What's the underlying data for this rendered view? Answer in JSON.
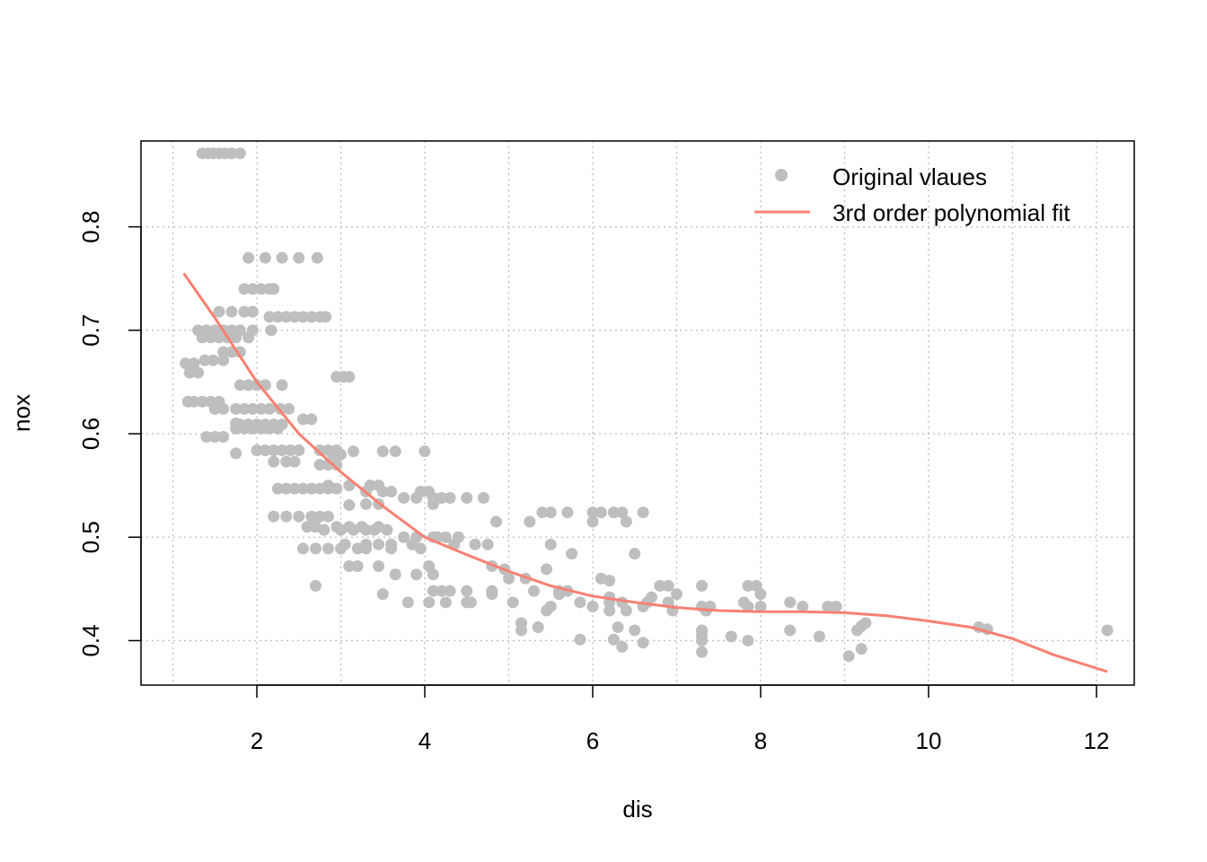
{
  "chart_data": {
    "type": "scatter",
    "title": "",
    "xlabel": "dis",
    "ylabel": "nox",
    "xlim": [
      0.62,
      12.45
    ],
    "ylim": [
      0.357,
      0.883
    ],
    "grid": true,
    "x_ticks": [
      2,
      4,
      6,
      8,
      10,
      12
    ],
    "y_ticks": [
      0.4,
      0.5,
      0.6,
      0.7,
      0.8
    ],
    "x_tick_labels": [
      "2",
      "4",
      "6",
      "8",
      "10",
      "12"
    ],
    "y_tick_labels": [
      "0.4",
      "0.5",
      "0.6",
      "0.7",
      "0.8"
    ],
    "colors": {
      "points": "#BEBEBE",
      "fit": "#FA8072",
      "grid": "#BEBEBE",
      "axis": "#000000"
    },
    "legend": {
      "position": "top-right",
      "entries": [
        {
          "label": "Original vlaues",
          "kind": "point",
          "color": "#BEBEBE"
        },
        {
          "label": "3rd order polynomial fit",
          "kind": "line",
          "color": "#FA8072"
        }
      ]
    },
    "series": [
      {
        "kind": "points",
        "color": "#BEBEBE",
        "points": [
          [
            1.35,
            0.871
          ],
          [
            1.42,
            0.871
          ],
          [
            1.48,
            0.871
          ],
          [
            1.55,
            0.871
          ],
          [
            1.62,
            0.871
          ],
          [
            1.7,
            0.871
          ],
          [
            1.8,
            0.871
          ],
          [
            1.9,
            0.77
          ],
          [
            2.1,
            0.77
          ],
          [
            2.3,
            0.77
          ],
          [
            2.5,
            0.77
          ],
          [
            2.72,
            0.77
          ],
          [
            1.85,
            0.74
          ],
          [
            1.95,
            0.74
          ],
          [
            2.05,
            0.74
          ],
          [
            2.15,
            0.74
          ],
          [
            2.2,
            0.74
          ],
          [
            1.7,
            0.718
          ],
          [
            1.85,
            0.718
          ],
          [
            1.95,
            0.718
          ],
          [
            1.55,
            0.718
          ],
          [
            2.15,
            0.713
          ],
          [
            2.25,
            0.713
          ],
          [
            2.35,
            0.713
          ],
          [
            2.45,
            0.713
          ],
          [
            2.55,
            0.713
          ],
          [
            2.65,
            0.713
          ],
          [
            2.75,
            0.713
          ],
          [
            2.82,
            0.713
          ],
          [
            1.3,
            0.7
          ],
          [
            1.4,
            0.7
          ],
          [
            1.5,
            0.7
          ],
          [
            1.6,
            0.7
          ],
          [
            1.7,
            0.7
          ],
          [
            1.8,
            0.7
          ],
          [
            1.95,
            0.7
          ],
          [
            2.17,
            0.7
          ],
          [
            1.35,
            0.693
          ],
          [
            1.45,
            0.693
          ],
          [
            1.55,
            0.693
          ],
          [
            1.65,
            0.693
          ],
          [
            1.75,
            0.693
          ],
          [
            1.9,
            0.693
          ],
          [
            1.6,
            0.679
          ],
          [
            1.7,
            0.679
          ],
          [
            1.8,
            0.679
          ],
          [
            1.15,
            0.668
          ],
          [
            1.25,
            0.668
          ],
          [
            1.38,
            0.671
          ],
          [
            1.48,
            0.671
          ],
          [
            1.6,
            0.671
          ],
          [
            1.2,
            0.659
          ],
          [
            1.3,
            0.659
          ],
          [
            2.95,
            0.655
          ],
          [
            3.03,
            0.655
          ],
          [
            3.1,
            0.655
          ],
          [
            1.8,
            0.647
          ],
          [
            1.9,
            0.647
          ],
          [
            2.0,
            0.647
          ],
          [
            2.1,
            0.647
          ],
          [
            2.3,
            0.647
          ],
          [
            1.18,
            0.631
          ],
          [
            1.25,
            0.631
          ],
          [
            1.35,
            0.631
          ],
          [
            1.45,
            0.631
          ],
          [
            1.55,
            0.631
          ],
          [
            1.5,
            0.624
          ],
          [
            1.6,
            0.624
          ],
          [
            1.75,
            0.624
          ],
          [
            1.85,
            0.624
          ],
          [
            1.95,
            0.624
          ],
          [
            2.05,
            0.624
          ],
          [
            2.15,
            0.624
          ],
          [
            2.28,
            0.624
          ],
          [
            2.38,
            0.624
          ],
          [
            2.55,
            0.614
          ],
          [
            2.65,
            0.614
          ],
          [
            1.75,
            0.61
          ],
          [
            1.8,
            0.609
          ],
          [
            1.9,
            0.609
          ],
          [
            2.0,
            0.609
          ],
          [
            2.1,
            0.609
          ],
          [
            2.2,
            0.609
          ],
          [
            2.3,
            0.609
          ],
          [
            1.75,
            0.605
          ],
          [
            1.85,
            0.605
          ],
          [
            1.95,
            0.605
          ],
          [
            2.05,
            0.605
          ],
          [
            2.15,
            0.605
          ],
          [
            2.25,
            0.605
          ],
          [
            1.4,
            0.597
          ],
          [
            1.5,
            0.597
          ],
          [
            1.6,
            0.597
          ],
          [
            1.75,
            0.581
          ],
          [
            2.0,
            0.584
          ],
          [
            2.1,
            0.584
          ],
          [
            2.2,
            0.584
          ],
          [
            2.3,
            0.584
          ],
          [
            2.4,
            0.584
          ],
          [
            2.5,
            0.584
          ],
          [
            2.75,
            0.584
          ],
          [
            2.85,
            0.584
          ],
          [
            2.95,
            0.584
          ],
          [
            3.15,
            0.583
          ],
          [
            3.5,
            0.583
          ],
          [
            3.65,
            0.583
          ],
          [
            4.0,
            0.583
          ],
          [
            2.9,
            0.58
          ],
          [
            3.0,
            0.58
          ],
          [
            2.2,
            0.573
          ],
          [
            2.35,
            0.573
          ],
          [
            2.45,
            0.573
          ],
          [
            2.75,
            0.57
          ],
          [
            2.85,
            0.57
          ],
          [
            2.95,
            0.57
          ],
          [
            2.85,
            0.55
          ],
          [
            3.1,
            0.55
          ],
          [
            3.35,
            0.55
          ],
          [
            3.45,
            0.55
          ],
          [
            2.25,
            0.547
          ],
          [
            2.35,
            0.547
          ],
          [
            2.45,
            0.547
          ],
          [
            2.55,
            0.547
          ],
          [
            2.65,
            0.547
          ],
          [
            2.75,
            0.547
          ],
          [
            2.85,
            0.547
          ],
          [
            2.95,
            0.547
          ],
          [
            3.3,
            0.544
          ],
          [
            3.5,
            0.544
          ],
          [
            3.6,
            0.544
          ],
          [
            3.95,
            0.544
          ],
          [
            4.05,
            0.544
          ],
          [
            3.9,
            0.538
          ],
          [
            4.1,
            0.538
          ],
          [
            4.2,
            0.538
          ],
          [
            4.3,
            0.538
          ],
          [
            4.5,
            0.538
          ],
          [
            4.7,
            0.538
          ],
          [
            3.75,
            0.538
          ],
          [
            3.3,
            0.532
          ],
          [
            3.45,
            0.532
          ],
          [
            4.1,
            0.532
          ],
          [
            3.1,
            0.531
          ],
          [
            2.2,
            0.52
          ],
          [
            2.35,
            0.52
          ],
          [
            2.5,
            0.52
          ],
          [
            2.65,
            0.52
          ],
          [
            2.75,
            0.52
          ],
          [
            2.85,
            0.52
          ],
          [
            5.4,
            0.524
          ],
          [
            5.5,
            0.524
          ],
          [
            5.7,
            0.524
          ],
          [
            6.0,
            0.524
          ],
          [
            6.1,
            0.524
          ],
          [
            6.25,
            0.524
          ],
          [
            6.35,
            0.524
          ],
          [
            6.6,
            0.524
          ],
          [
            5.25,
            0.515
          ],
          [
            4.85,
            0.515
          ],
          [
            6.0,
            0.515
          ],
          [
            6.4,
            0.515
          ],
          [
            2.6,
            0.51
          ],
          [
            2.7,
            0.51
          ],
          [
            2.95,
            0.51
          ],
          [
            3.1,
            0.51
          ],
          [
            3.25,
            0.51
          ],
          [
            3.45,
            0.51
          ],
          [
            2.8,
            0.507
          ],
          [
            3.0,
            0.507
          ],
          [
            3.15,
            0.507
          ],
          [
            3.3,
            0.507
          ],
          [
            3.4,
            0.507
          ],
          [
            3.55,
            0.507
          ],
          [
            3.75,
            0.5
          ],
          [
            3.9,
            0.5
          ],
          [
            4.1,
            0.5
          ],
          [
            4.15,
            0.5
          ],
          [
            4.25,
            0.5
          ],
          [
            4.4,
            0.5
          ],
          [
            3.05,
            0.493
          ],
          [
            3.3,
            0.493
          ],
          [
            3.45,
            0.493
          ],
          [
            3.6,
            0.493
          ],
          [
            3.85,
            0.493
          ],
          [
            4.35,
            0.493
          ],
          [
            4.6,
            0.493
          ],
          [
            4.75,
            0.493
          ],
          [
            5.5,
            0.493
          ],
          [
            2.55,
            0.489
          ],
          [
            2.7,
            0.489
          ],
          [
            2.85,
            0.489
          ],
          [
            3.0,
            0.489
          ],
          [
            3.2,
            0.489
          ],
          [
            3.3,
            0.489
          ],
          [
            3.6,
            0.489
          ],
          [
            3.95,
            0.489
          ],
          [
            5.75,
            0.484
          ],
          [
            6.5,
            0.484
          ],
          [
            3.1,
            0.472
          ],
          [
            3.2,
            0.472
          ],
          [
            3.45,
            0.472
          ],
          [
            4.05,
            0.472
          ],
          [
            4.8,
            0.472
          ],
          [
            4.95,
            0.469
          ],
          [
            5.45,
            0.469
          ],
          [
            3.65,
            0.464
          ],
          [
            3.9,
            0.464
          ],
          [
            4.1,
            0.464
          ],
          [
            5.0,
            0.46
          ],
          [
            5.2,
            0.46
          ],
          [
            6.1,
            0.46
          ],
          [
            6.2,
            0.458
          ],
          [
            2.7,
            0.453
          ],
          [
            6.8,
            0.453
          ],
          [
            6.9,
            0.453
          ],
          [
            7.3,
            0.453
          ],
          [
            7.85,
            0.453
          ],
          [
            7.95,
            0.453
          ],
          [
            4.1,
            0.448
          ],
          [
            4.2,
            0.448
          ],
          [
            4.3,
            0.448
          ],
          [
            4.5,
            0.448
          ],
          [
            4.8,
            0.448
          ],
          [
            5.3,
            0.448
          ],
          [
            5.6,
            0.448
          ],
          [
            5.7,
            0.448
          ],
          [
            3.5,
            0.445
          ],
          [
            4.8,
            0.445
          ],
          [
            5.6,
            0.445
          ],
          [
            7.0,
            0.445
          ],
          [
            8.0,
            0.445
          ],
          [
            6.2,
            0.442
          ],
          [
            6.7,
            0.442
          ],
          [
            4.05,
            0.437
          ],
          [
            4.25,
            0.437
          ],
          [
            4.5,
            0.437
          ],
          [
            4.55,
            0.437
          ],
          [
            5.05,
            0.437
          ],
          [
            5.85,
            0.437
          ],
          [
            6.2,
            0.437
          ],
          [
            6.35,
            0.437
          ],
          [
            6.65,
            0.437
          ],
          [
            7.8,
            0.437
          ],
          [
            8.35,
            0.437
          ],
          [
            3.8,
            0.437
          ],
          [
            6.9,
            0.437
          ],
          [
            5.5,
            0.433
          ],
          [
            6.0,
            0.433
          ],
          [
            6.6,
            0.433
          ],
          [
            7.3,
            0.433
          ],
          [
            7.4,
            0.433
          ],
          [
            7.85,
            0.433
          ],
          [
            8.0,
            0.433
          ],
          [
            8.5,
            0.433
          ],
          [
            8.8,
            0.433
          ],
          [
            8.9,
            0.433
          ],
          [
            5.45,
            0.429
          ],
          [
            6.2,
            0.429
          ],
          [
            6.4,
            0.429
          ],
          [
            6.95,
            0.429
          ],
          [
            7.35,
            0.429
          ],
          [
            5.15,
            0.417
          ],
          [
            5.35,
            0.413
          ],
          [
            5.15,
            0.41
          ],
          [
            6.3,
            0.413
          ],
          [
            6.5,
            0.41
          ],
          [
            7.3,
            0.41
          ],
          [
            7.3,
            0.405
          ],
          [
            7.3,
            0.4
          ],
          [
            7.65,
            0.404
          ],
          [
            7.85,
            0.4
          ],
          [
            8.35,
            0.41
          ],
          [
            8.7,
            0.404
          ],
          [
            9.2,
            0.414
          ],
          [
            9.25,
            0.417
          ],
          [
            9.15,
            0.41
          ],
          [
            10.6,
            0.413
          ],
          [
            10.7,
            0.411
          ],
          [
            12.13,
            0.41
          ],
          [
            5.85,
            0.401
          ],
          [
            6.25,
            0.401
          ],
          [
            6.35,
            0.394
          ],
          [
            6.6,
            0.398
          ],
          [
            7.3,
            0.389
          ],
          [
            9.2,
            0.392
          ],
          [
            9.05,
            0.385
          ]
        ]
      },
      {
        "kind": "line",
        "name": "3rd order polynomial fit",
        "color": "#FA8072",
        "x": [
          1.13,
          1.5,
          2.0,
          2.5,
          3.0,
          3.5,
          4.0,
          4.5,
          5.0,
          5.5,
          6.0,
          6.5,
          7.0,
          7.5,
          8.0,
          8.5,
          9.0,
          9.5,
          10.0,
          10.5,
          11.0,
          11.5,
          12.13
        ],
        "y": [
          0.755,
          0.712,
          0.65,
          0.6,
          0.563,
          0.53,
          0.5,
          0.483,
          0.467,
          0.453,
          0.443,
          0.437,
          0.432,
          0.429,
          0.428,
          0.428,
          0.427,
          0.424,
          0.419,
          0.413,
          0.402,
          0.386,
          0.37
        ]
      }
    ]
  }
}
